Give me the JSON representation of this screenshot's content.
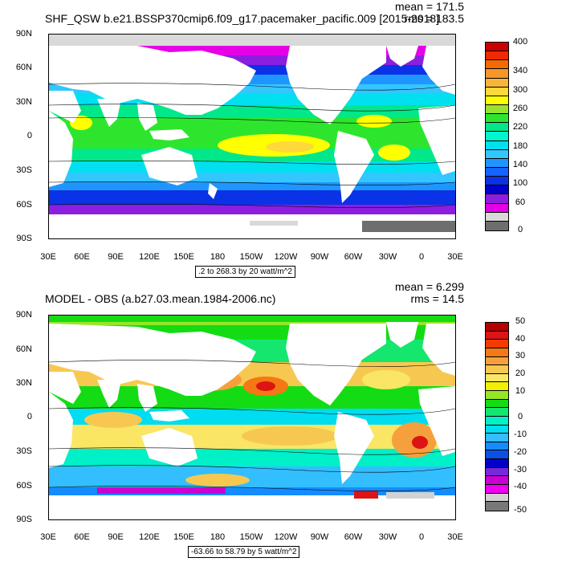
{
  "top": {
    "title": "SHF_QSW b.e21.BSSP370cmip6.f09_g17.pacemaker_pacific.009 [2015-2018]",
    "mean": "mean = 171.5",
    "rms": "rms = 183.5",
    "info": ".2 to 268.3 by 20 watt/m^2",
    "lat_labels": [
      "90N",
      "60N",
      "30N",
      "0",
      "30S",
      "60S",
      "90S"
    ],
    "lon_labels": [
      "30E",
      "60E",
      "90E",
      "120E",
      "150E",
      "180",
      "150W",
      "120W",
      "90W",
      "60W",
      "30W",
      "0",
      "30E"
    ],
    "colorbar_labels": [
      "400",
      "340",
      "300",
      "260",
      "220",
      "180",
      "140",
      "100",
      "60",
      "0"
    ],
    "colorbar_colors": [
      "#cc0000",
      "#ee2a00",
      "#f56a00",
      "#f5962a",
      "#f7b53a",
      "#ffd83a",
      "#ffff00",
      "#99e233",
      "#2ee52e",
      "#00e88a",
      "#00f5d0",
      "#00e0ee",
      "#33c6ff",
      "#1f96ff",
      "#1464ff",
      "#0a32e6",
      "#0000c8",
      "#8c1ee0",
      "#e600e6",
      "#d9d9d9",
      "#6e6e6e"
    ]
  },
  "bottom": {
    "title": "MODEL - OBS (a.b27.03.mean.1984-2006.nc)",
    "mean": "mean = 6.299",
    "rms": "rms = 14.5",
    "info": "-63.66 to 58.79 by 5 watt/m^2",
    "lat_labels": [
      "90N",
      "60N",
      "30N",
      "0",
      "30S",
      "60S",
      "90S"
    ],
    "lon_labels": [
      "30E",
      "60E",
      "90E",
      "120E",
      "150E",
      "180",
      "150W",
      "120W",
      "90W",
      "60W",
      "30W",
      "0",
      "30E"
    ],
    "colorbar_labels": [
      "50",
      "40",
      "30",
      "20",
      "10",
      "0",
      "-10",
      "-20",
      "-30",
      "-40",
      "-50"
    ],
    "colorbar_colors": [
      "#b40000",
      "#dc1414",
      "#f03c00",
      "#f57814",
      "#f5a03c",
      "#f7c850",
      "#fae664",
      "#f0f000",
      "#96e628",
      "#14dc14",
      "#14e66e",
      "#00f0c8",
      "#00dcf0",
      "#32beff",
      "#148cff",
      "#0a50e6",
      "#0000c8",
      "#7828dc",
      "#c800d2",
      "#f000f0",
      "#d2d2d2",
      "#787878"
    ]
  }
}
